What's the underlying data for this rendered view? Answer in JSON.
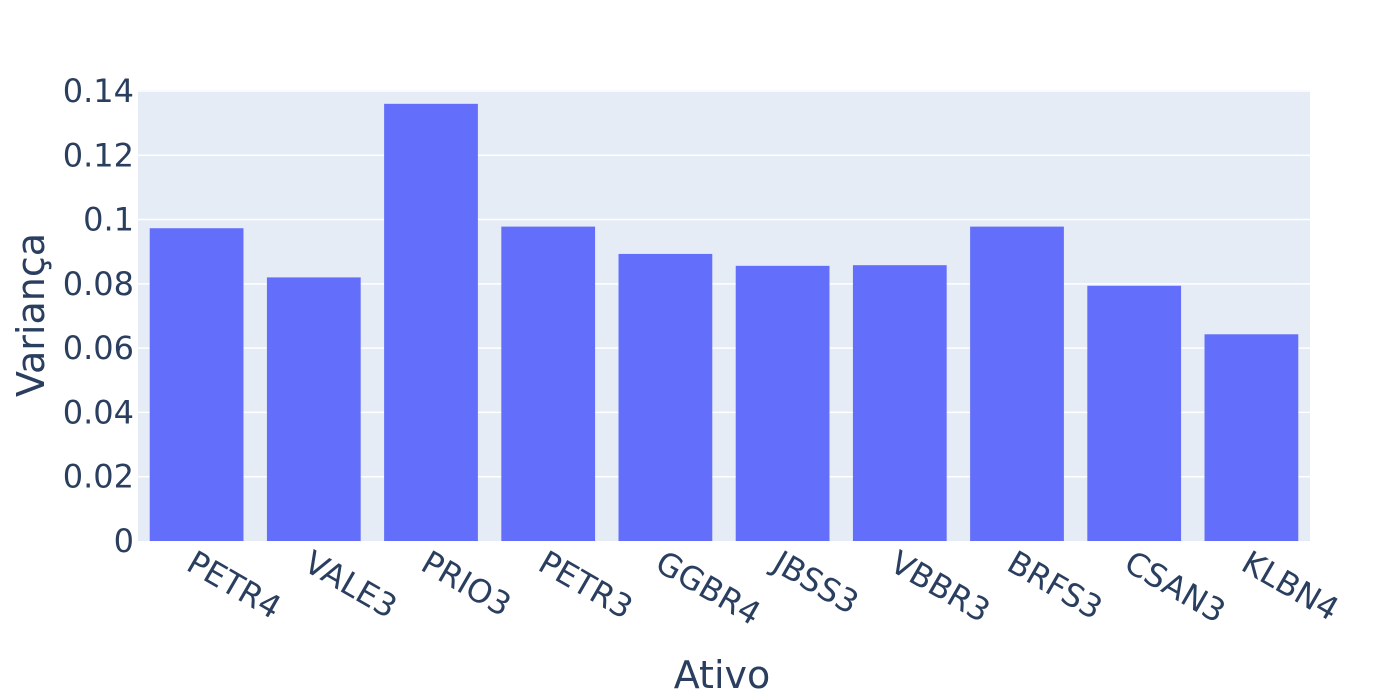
{
  "chart_data": {
    "type": "bar",
    "categories": [
      "PETR4",
      "VALE3",
      "PRIO3",
      "PETR3",
      "GGBR4",
      "JBSS3",
      "VBBR3",
      "BRFS3",
      "CSAN3",
      "KLBN4"
    ],
    "values": [
      0.0973,
      0.082,
      0.136,
      0.0978,
      0.0893,
      0.0856,
      0.0858,
      0.0978,
      0.0794,
      0.0643
    ],
    "xlabel": "Ativo",
    "ylabel": "Variança",
    "ylim": [
      0,
      0.1403
    ],
    "yticks": [
      0,
      0.02,
      0.04,
      0.06,
      0.08,
      0.1,
      0.12,
      0.14
    ],
    "ytick_labels": [
      "0",
      "0.02",
      "0.04",
      "0.06",
      "0.08",
      "0.1",
      "0.12",
      "0.14"
    ],
    "grid": true,
    "bar_color": "#636efa",
    "plot_bg": "#e5ecf6",
    "text_color": "#2a3f5f"
  }
}
